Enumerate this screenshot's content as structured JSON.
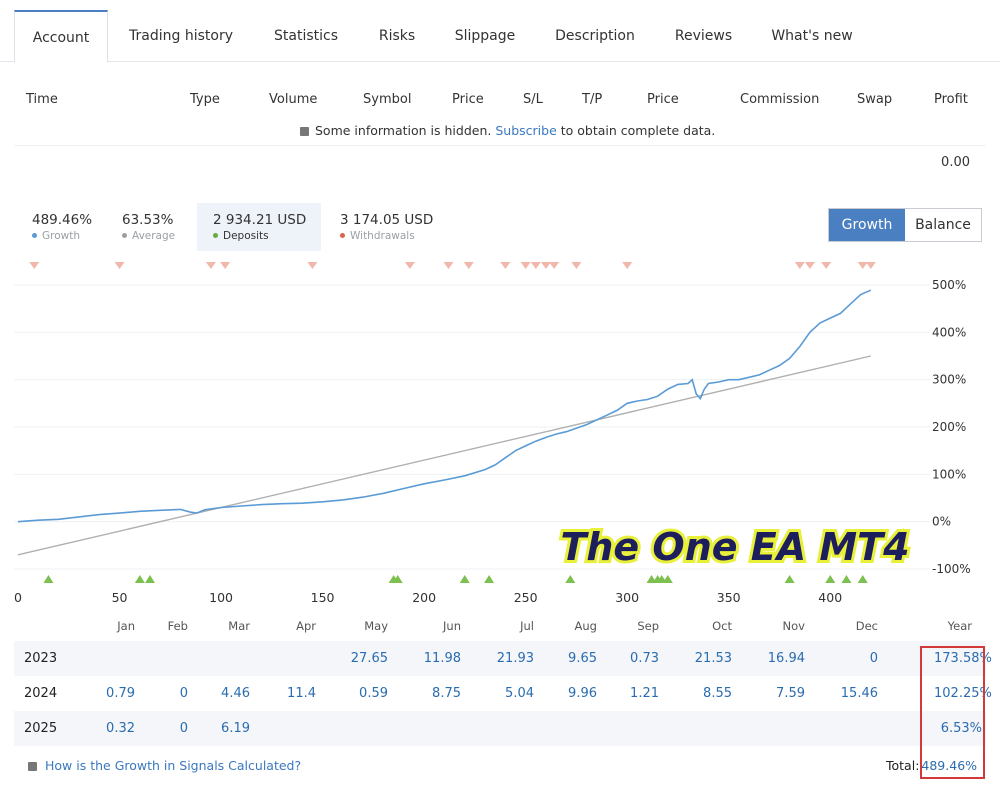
{
  "tabs": [
    "Account",
    "Trading history",
    "Statistics",
    "Risks",
    "Slippage",
    "Description",
    "Reviews",
    "What's new"
  ],
  "table_headers": [
    "Time",
    "Type",
    "Volume",
    "Symbol",
    "Price",
    "S/L",
    "T/P",
    "Price",
    "Commission",
    "Swap",
    "Profit"
  ],
  "hidden_note": {
    "prefix": "Some information is hidden.",
    "link": "Subscribe",
    "suffix": "to obtain complete data."
  },
  "profit_total": "0.00",
  "stats": [
    {
      "value": "489.46%",
      "label": "Growth",
      "color": "#5b9bd5"
    },
    {
      "value": "63.53%",
      "label": "Average",
      "color": "#9e9e9e"
    },
    {
      "value": "2 934.21 USD",
      "label": "Deposits",
      "color": "#6aaa3a"
    },
    {
      "value": "3 174.05 USD",
      "label": "Withdrawals",
      "color": "#d9654b"
    }
  ],
  "toggle": {
    "growth": "Growth",
    "balance": "Balance"
  },
  "chart_data": {
    "type": "line",
    "y_ticks": [
      "500%",
      "400%",
      "300%",
      "200%",
      "100%",
      "0%",
      "-100%"
    ],
    "x_ticks": [
      "0",
      "50",
      "100",
      "150",
      "200",
      "250",
      "300",
      "350",
      "400"
    ],
    "xlim": [
      0,
      425
    ],
    "ylim": [
      -100,
      500
    ],
    "series": [
      {
        "name": "Growth",
        "color": "#5b9bd5",
        "values": [
          [
            0,
            0
          ],
          [
            10,
            3
          ],
          [
            20,
            5
          ],
          [
            30,
            10
          ],
          [
            40,
            15
          ],
          [
            50,
            18
          ],
          [
            60,
            22
          ],
          [
            70,
            24
          ],
          [
            80,
            26
          ],
          [
            85,
            20
          ],
          [
            88,
            18
          ],
          [
            92,
            25
          ],
          [
            100,
            30
          ],
          [
            110,
            33
          ],
          [
            120,
            36
          ],
          [
            130,
            38
          ],
          [
            140,
            39
          ],
          [
            150,
            42
          ],
          [
            160,
            46
          ],
          [
            170,
            52
          ],
          [
            180,
            60
          ],
          [
            190,
            70
          ],
          [
            200,
            80
          ],
          [
            210,
            88
          ],
          [
            220,
            97
          ],
          [
            230,
            110
          ],
          [
            235,
            120
          ],
          [
            240,
            135
          ],
          [
            245,
            150
          ],
          [
            250,
            160
          ],
          [
            255,
            170
          ],
          [
            260,
            178
          ],
          [
            265,
            185
          ],
          [
            270,
            190
          ],
          [
            280,
            205
          ],
          [
            290,
            225
          ],
          [
            295,
            235
          ],
          [
            300,
            250
          ],
          [
            305,
            255
          ],
          [
            310,
            258
          ],
          [
            315,
            265
          ],
          [
            320,
            280
          ],
          [
            325,
            290
          ],
          [
            330,
            292
          ],
          [
            332,
            300
          ],
          [
            334,
            270
          ],
          [
            336,
            260
          ],
          [
            338,
            280
          ],
          [
            340,
            292
          ],
          [
            345,
            295
          ],
          [
            350,
            300
          ],
          [
            355,
            300
          ],
          [
            360,
            305
          ],
          [
            365,
            310
          ],
          [
            370,
            320
          ],
          [
            375,
            330
          ],
          [
            380,
            345
          ],
          [
            385,
            370
          ],
          [
            390,
            400
          ],
          [
            395,
            420
          ],
          [
            400,
            430
          ],
          [
            405,
            440
          ],
          [
            410,
            460
          ],
          [
            415,
            480
          ],
          [
            420,
            489
          ]
        ]
      },
      {
        "name": "Average",
        "color": "#b0b0b0",
        "values": [
          [
            0,
            -70
          ],
          [
            420,
            350
          ]
        ]
      }
    ],
    "deposit_markers_x": [
      15,
      60,
      65,
      185,
      187,
      220,
      232,
      272,
      312,
      315,
      317,
      320,
      380,
      400,
      408,
      416
    ],
    "withdrawal_markers_x": [
      8,
      50,
      95,
      102,
      145,
      193,
      212,
      222,
      240,
      250,
      255,
      260,
      264,
      275,
      300,
      385,
      390,
      398,
      416,
      420
    ],
    "watermark": "The One EA MT4"
  },
  "monthly": {
    "headers": [
      "Jan",
      "Feb",
      "Mar",
      "Apr",
      "May",
      "Jun",
      "Jul",
      "Aug",
      "Sep",
      "Oct",
      "Nov",
      "Dec",
      "Year"
    ],
    "rows": [
      {
        "year": "2023",
        "values": [
          "",
          "",
          "",
          "",
          "27.65",
          "11.98",
          "21.93",
          "9.65",
          "0.73",
          "21.53",
          "16.94",
          "0"
        ],
        "total": "173.58%"
      },
      {
        "year": "2024",
        "values": [
          "0.79",
          "0",
          "4.46",
          "11.4",
          "0.59",
          "8.75",
          "5.04",
          "9.96",
          "1.21",
          "8.55",
          "7.59",
          "15.46"
        ],
        "total": "102.25%"
      },
      {
        "year": "2025",
        "values": [
          "0.32",
          "0",
          "6.19",
          "",
          "",
          "",
          "",
          "",
          "",
          "",
          "",
          ""
        ],
        "total": "6.53%"
      }
    ]
  },
  "footer": {
    "link": "How is the Growth in Signals Calculated?",
    "total_label": "Total:",
    "total_value": "489.46%"
  }
}
